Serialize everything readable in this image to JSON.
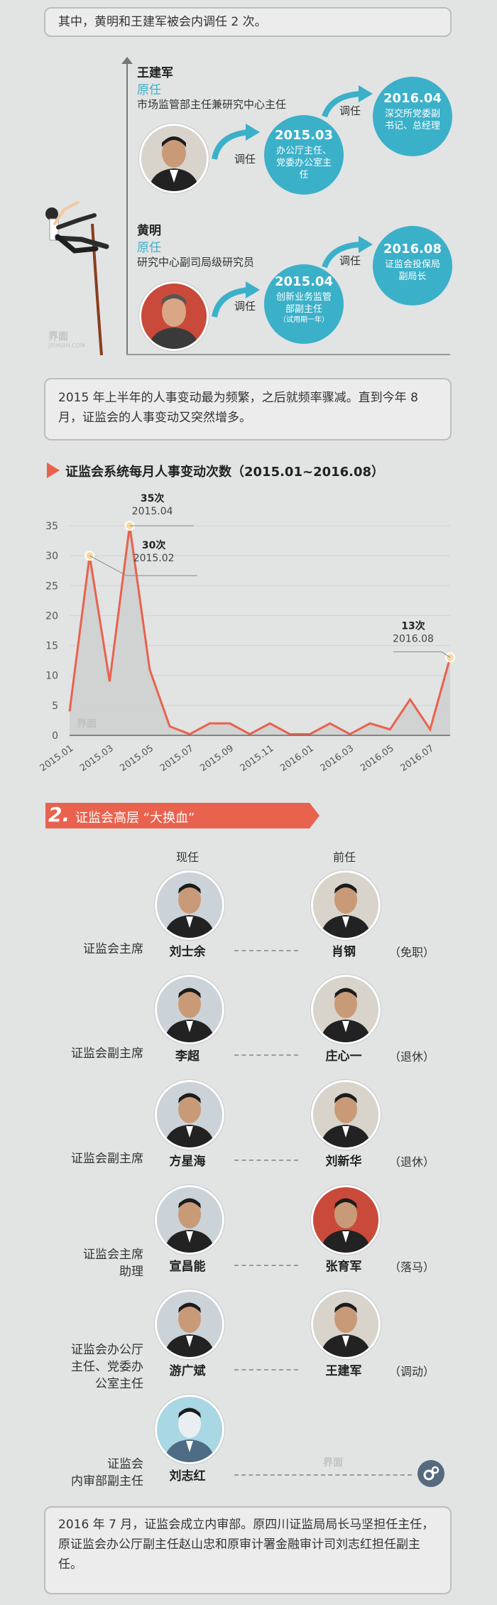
{
  "intro_box": "其中，黄明和王建军被会内调任 2 次。",
  "transfers": [
    {
      "name": "王建军",
      "orig_label": "原任",
      "orig_title": "市场监管部主任兼研究中心主任",
      "step1": {
        "action": "调任",
        "year": "2015.03",
        "title": "办公厅主任、党委办公室主任"
      },
      "step2": {
        "action": "调任",
        "year": "2016.04",
        "title": "深交所党委副书记、总经理"
      }
    },
    {
      "name": "黄明",
      "orig_label": "原任",
      "orig_title": "研究中心副司局级研究员",
      "step1": {
        "action": "调任",
        "year": "2015.04",
        "title": "创新业务监管部副主任",
        "note": "（试用期一年）"
      },
      "step2": {
        "action": "调任",
        "year": "2016.08",
        "title": "证监会投保局副局长"
      }
    }
  ],
  "watermark": "界面",
  "watermark_sub": "JIEMIAN.COM",
  "box2": "2015 年上半年的人事变动最为频繁，之后就频率骤减。直到今年 8 月，证监会的人事变动又突然增多。",
  "chart_title": "证监会系统每月人事变动次数（2015.01~2016.08）",
  "chart_data": {
    "type": "area",
    "title": "证监会系统每月人事变动次数（2015.01~2016.08）",
    "x": [
      "2015.01",
      "2015.02",
      "2015.03",
      "2015.04",
      "2015.05",
      "2015.06",
      "2015.07",
      "2015.08",
      "2015.09",
      "2015.10",
      "2015.11",
      "2015.12",
      "2016.01",
      "2016.02",
      "2016.03",
      "2016.04",
      "2016.05",
      "2016.06",
      "2016.07",
      "2016.08"
    ],
    "values": [
      4,
      30,
      9,
      35,
      11,
      1.5,
      0.2,
      2,
      2,
      0.2,
      2,
      0.2,
      0.2,
      2,
      0.2,
      2,
      1,
      6,
      1,
      13
    ],
    "ylim": [
      0,
      35
    ],
    "yticks": [
      0,
      5,
      10,
      15,
      20,
      25,
      30,
      35
    ],
    "xtick_labels": [
      "2015.01",
      "2015.03",
      "2015.05",
      "2015.07",
      "2015.09",
      "2015.11",
      "2016.01",
      "2016.03",
      "2016.05",
      "2016.07"
    ],
    "annotations": [
      {
        "value_label": "35次",
        "date_label": "2015.04"
      },
      {
        "value_label": "30次",
        "date_label": "2015.02"
      },
      {
        "value_label": "13次",
        "date_label": "2016.08"
      }
    ],
    "colors": {
      "line": "#e8624e",
      "fill": "#cfcfcf",
      "marker": "#f7d9a0"
    }
  },
  "section2": {
    "number": "2.",
    "title": "证监会高层 “大换血”"
  },
  "col_current": "现任",
  "col_former": "前任",
  "rows": [
    {
      "position": "证监会主席",
      "current": "刘士余",
      "former": "肖钢",
      "note": "（免职）"
    },
    {
      "position": "证监会副主席",
      "current": "李超",
      "former": "庄心一",
      "note": "（退休）"
    },
    {
      "position": "证监会副主席",
      "current": "方星海",
      "former": "刘新华",
      "note": "（退休）"
    },
    {
      "position": "证监会主席助理",
      "current": "宣昌能",
      "former": "张育军",
      "note": "（落马）"
    },
    {
      "position": "证监会办公厅主任、党委办公室主任",
      "current": "游广斌",
      "former": "王建军",
      "note": "（调动）"
    },
    {
      "position": "证监会内审部副主任",
      "current": "刘志红",
      "former": "",
      "note": ""
    }
  ],
  "bottom_box": "2016 年 7 月，证监会成立内审部。原四川证监局局长马坚担任主任，原证监会办公厅副主任赵山忠和原审计署金融审计司刘志红担任副主任。",
  "colors": {
    "accent": "#3bb0c9",
    "red": "#e8624e",
    "bg": "#e2e3e3"
  }
}
